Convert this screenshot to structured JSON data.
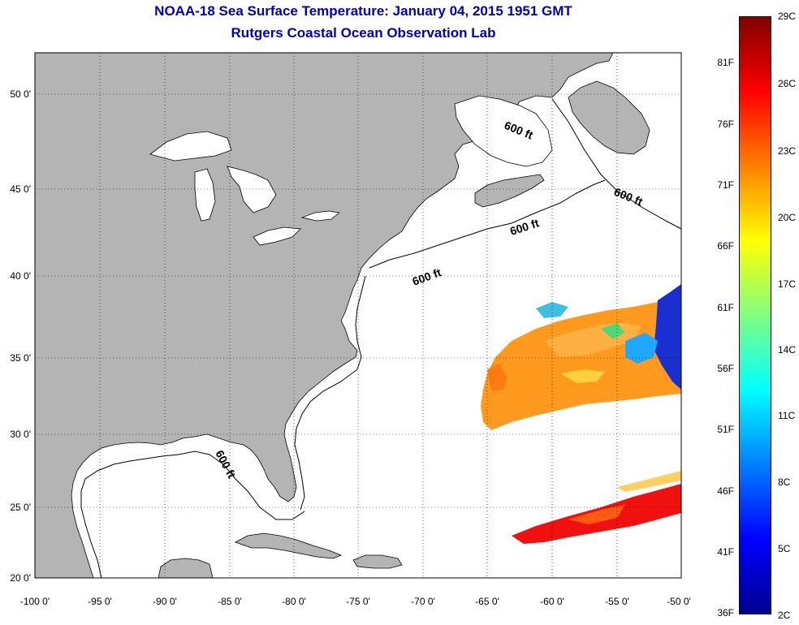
{
  "title": {
    "line1": "NOAA-18 Sea Surface Temperature:  January 04, 2015 1951 GMT",
    "line2": "Rutgers Coastal Ocean Observation Lab"
  },
  "map": {
    "lon_ticks": [
      "-100 0'",
      "-95 0'",
      "-90 0'",
      "-85 0'",
      "-80 0'",
      "-75 0'",
      "-70 0'",
      "-65 0'",
      "-60 0'",
      "-55 0'",
      "-50 0'"
    ],
    "lat_ticks": [
      "50 0'",
      "45 0'",
      "40 0'",
      "35 0'",
      "30 0'",
      "25 0'",
      "20 0'"
    ],
    "contour_labels": [
      "600 ft",
      "600 ft",
      "600 ft",
      "600 ft",
      "600 ft"
    ],
    "land_color": "#b4b4b4",
    "ocean_color": "#ffffff"
  },
  "colorbar": {
    "celsius": [
      "29C",
      "26C",
      "23C",
      "20C",
      "17C",
      "14C",
      "11C",
      "8C",
      "5C",
      "2C"
    ],
    "fahrenheit": [
      "81F",
      "76F",
      "71F",
      "66F",
      "61F",
      "56F",
      "51F",
      "46F",
      "41F",
      "36F"
    ],
    "colors": [
      "#800000",
      "#ff0000",
      "#ff8000",
      "#ffff00",
      "#80ff80",
      "#00ffff",
      "#0080ff",
      "#0000ff",
      "#00008f"
    ]
  }
}
